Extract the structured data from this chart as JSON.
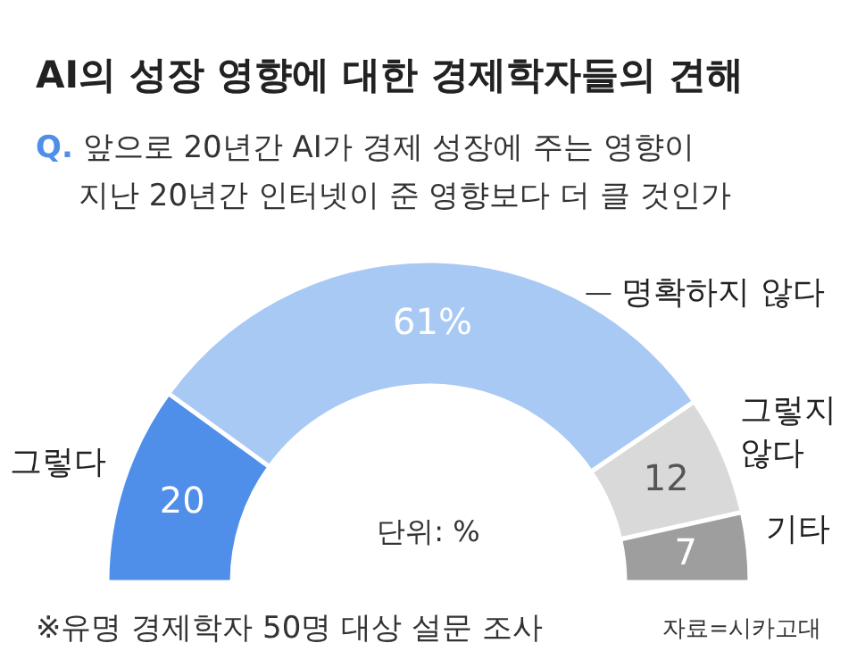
{
  "chart_data": {
    "type": "donut",
    "title": "AI의 성장 영향에 대한 경제학자들의 견해",
    "subtitle": "Q. 앞으로 20년간 AI가 경제 성장에 주는 영향이\n지난 20년간 인터넷이 준 영향보다 더 클 것인가",
    "categories": [
      "그렇다",
      "명확하지 않다",
      "그렇지 않다",
      "기타"
    ],
    "values": [
      20,
      61,
      12,
      7
    ],
    "colors": [
      "#4f8fea",
      "#a9c9f5",
      "#d9d9d9",
      "#9e9e9e"
    ],
    "value_labels": [
      "20",
      "61%",
      "12",
      "7"
    ],
    "legend": false,
    "annotations": [
      "단위: %",
      "※유명 경제학자 50명 대상 설문 조사",
      "자료=시카고대"
    ]
  }
}
